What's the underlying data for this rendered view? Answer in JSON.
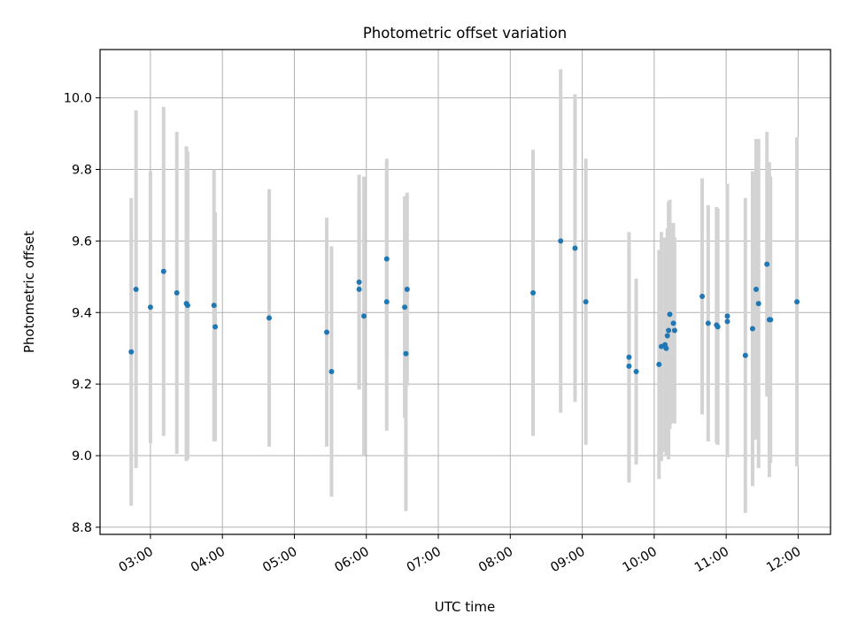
{
  "chart_data": {
    "type": "scatter",
    "title": "Photometric offset variation",
    "xlabel": "UTC time",
    "ylabel": "Photometric offset",
    "grid": true,
    "x_type": "time",
    "xlim": [
      "02:18",
      "12:27"
    ],
    "ylim": [
      8.78,
      10.135
    ],
    "x_ticks": [
      "03:00",
      "04:00",
      "05:00",
      "06:00",
      "07:00",
      "08:00",
      "09:00",
      "10:00",
      "11:00",
      "12:00"
    ],
    "y_ticks": [
      "8.8",
      "9.0",
      "9.2",
      "9.4",
      "9.6",
      "9.8",
      "10.0"
    ],
    "colors": {
      "points": "#1f77b4",
      "errorbars": "#d3d3d3",
      "grid": "#b0b0b0"
    },
    "series": [
      {
        "x": [
          "02:44",
          "02:48",
          "03:00",
          "03:11",
          "03:22",
          "03:30",
          "03:31",
          "03:53",
          "03:54",
          "04:39",
          "05:27",
          "05:31",
          "05:54",
          "05:54",
          "05:58",
          "06:17",
          "06:17",
          "06:32",
          "06:33",
          "06:34",
          "08:19",
          "08:42",
          "08:54",
          "09:03",
          "09:39",
          "09:39",
          "09:45",
          "10:04",
          "10:06",
          "10:09",
          "10:10",
          "10:11",
          "10:12",
          "10:13",
          "10:16",
          "10:17",
          "10:40",
          "10:45",
          "10:52",
          "10:53",
          "11:01",
          "11:01",
          "11:16",
          "11:22",
          "11:25",
          "11:27",
          "11:34",
          "11:36",
          "11:37",
          "11:59"
        ],
        "y": [
          9.29,
          9.465,
          9.415,
          9.515,
          9.455,
          9.425,
          9.42,
          9.42,
          9.36,
          9.385,
          9.345,
          9.235,
          9.485,
          9.465,
          9.39,
          9.55,
          9.43,
          9.415,
          9.285,
          9.465,
          9.455,
          9.6,
          9.58,
          9.43,
          9.275,
          9.25,
          9.235,
          9.255,
          9.305,
          9.31,
          9.3,
          9.335,
          9.35,
          9.395,
          9.37,
          9.35,
          9.445,
          9.37,
          9.365,
          9.36,
          9.39,
          9.375,
          9.28,
          9.355,
          9.465,
          9.425,
          9.535,
          9.38,
          9.38,
          9.43
        ],
        "yerr": [
          0.43,
          0.5,
          0.38,
          0.46,
          0.45,
          0.44,
          0.43,
          0.38,
          0.32,
          0.36,
          0.32,
          0.35,
          0.3,
          0.28,
          0.39,
          0.28,
          0.36,
          0.31,
          0.44,
          0.27,
          0.4,
          0.48,
          0.43,
          0.4,
          0.35,
          0.32,
          0.26,
          0.32,
          0.32,
          0.3,
          0.3,
          0.3,
          0.36,
          0.32,
          0.28,
          0.26,
          0.33,
          0.33,
          0.33,
          0.33,
          0.37,
          0.38,
          0.44,
          0.44,
          0.42,
          0.46,
          0.37,
          0.44,
          0.4,
          0.46
        ]
      }
    ]
  }
}
